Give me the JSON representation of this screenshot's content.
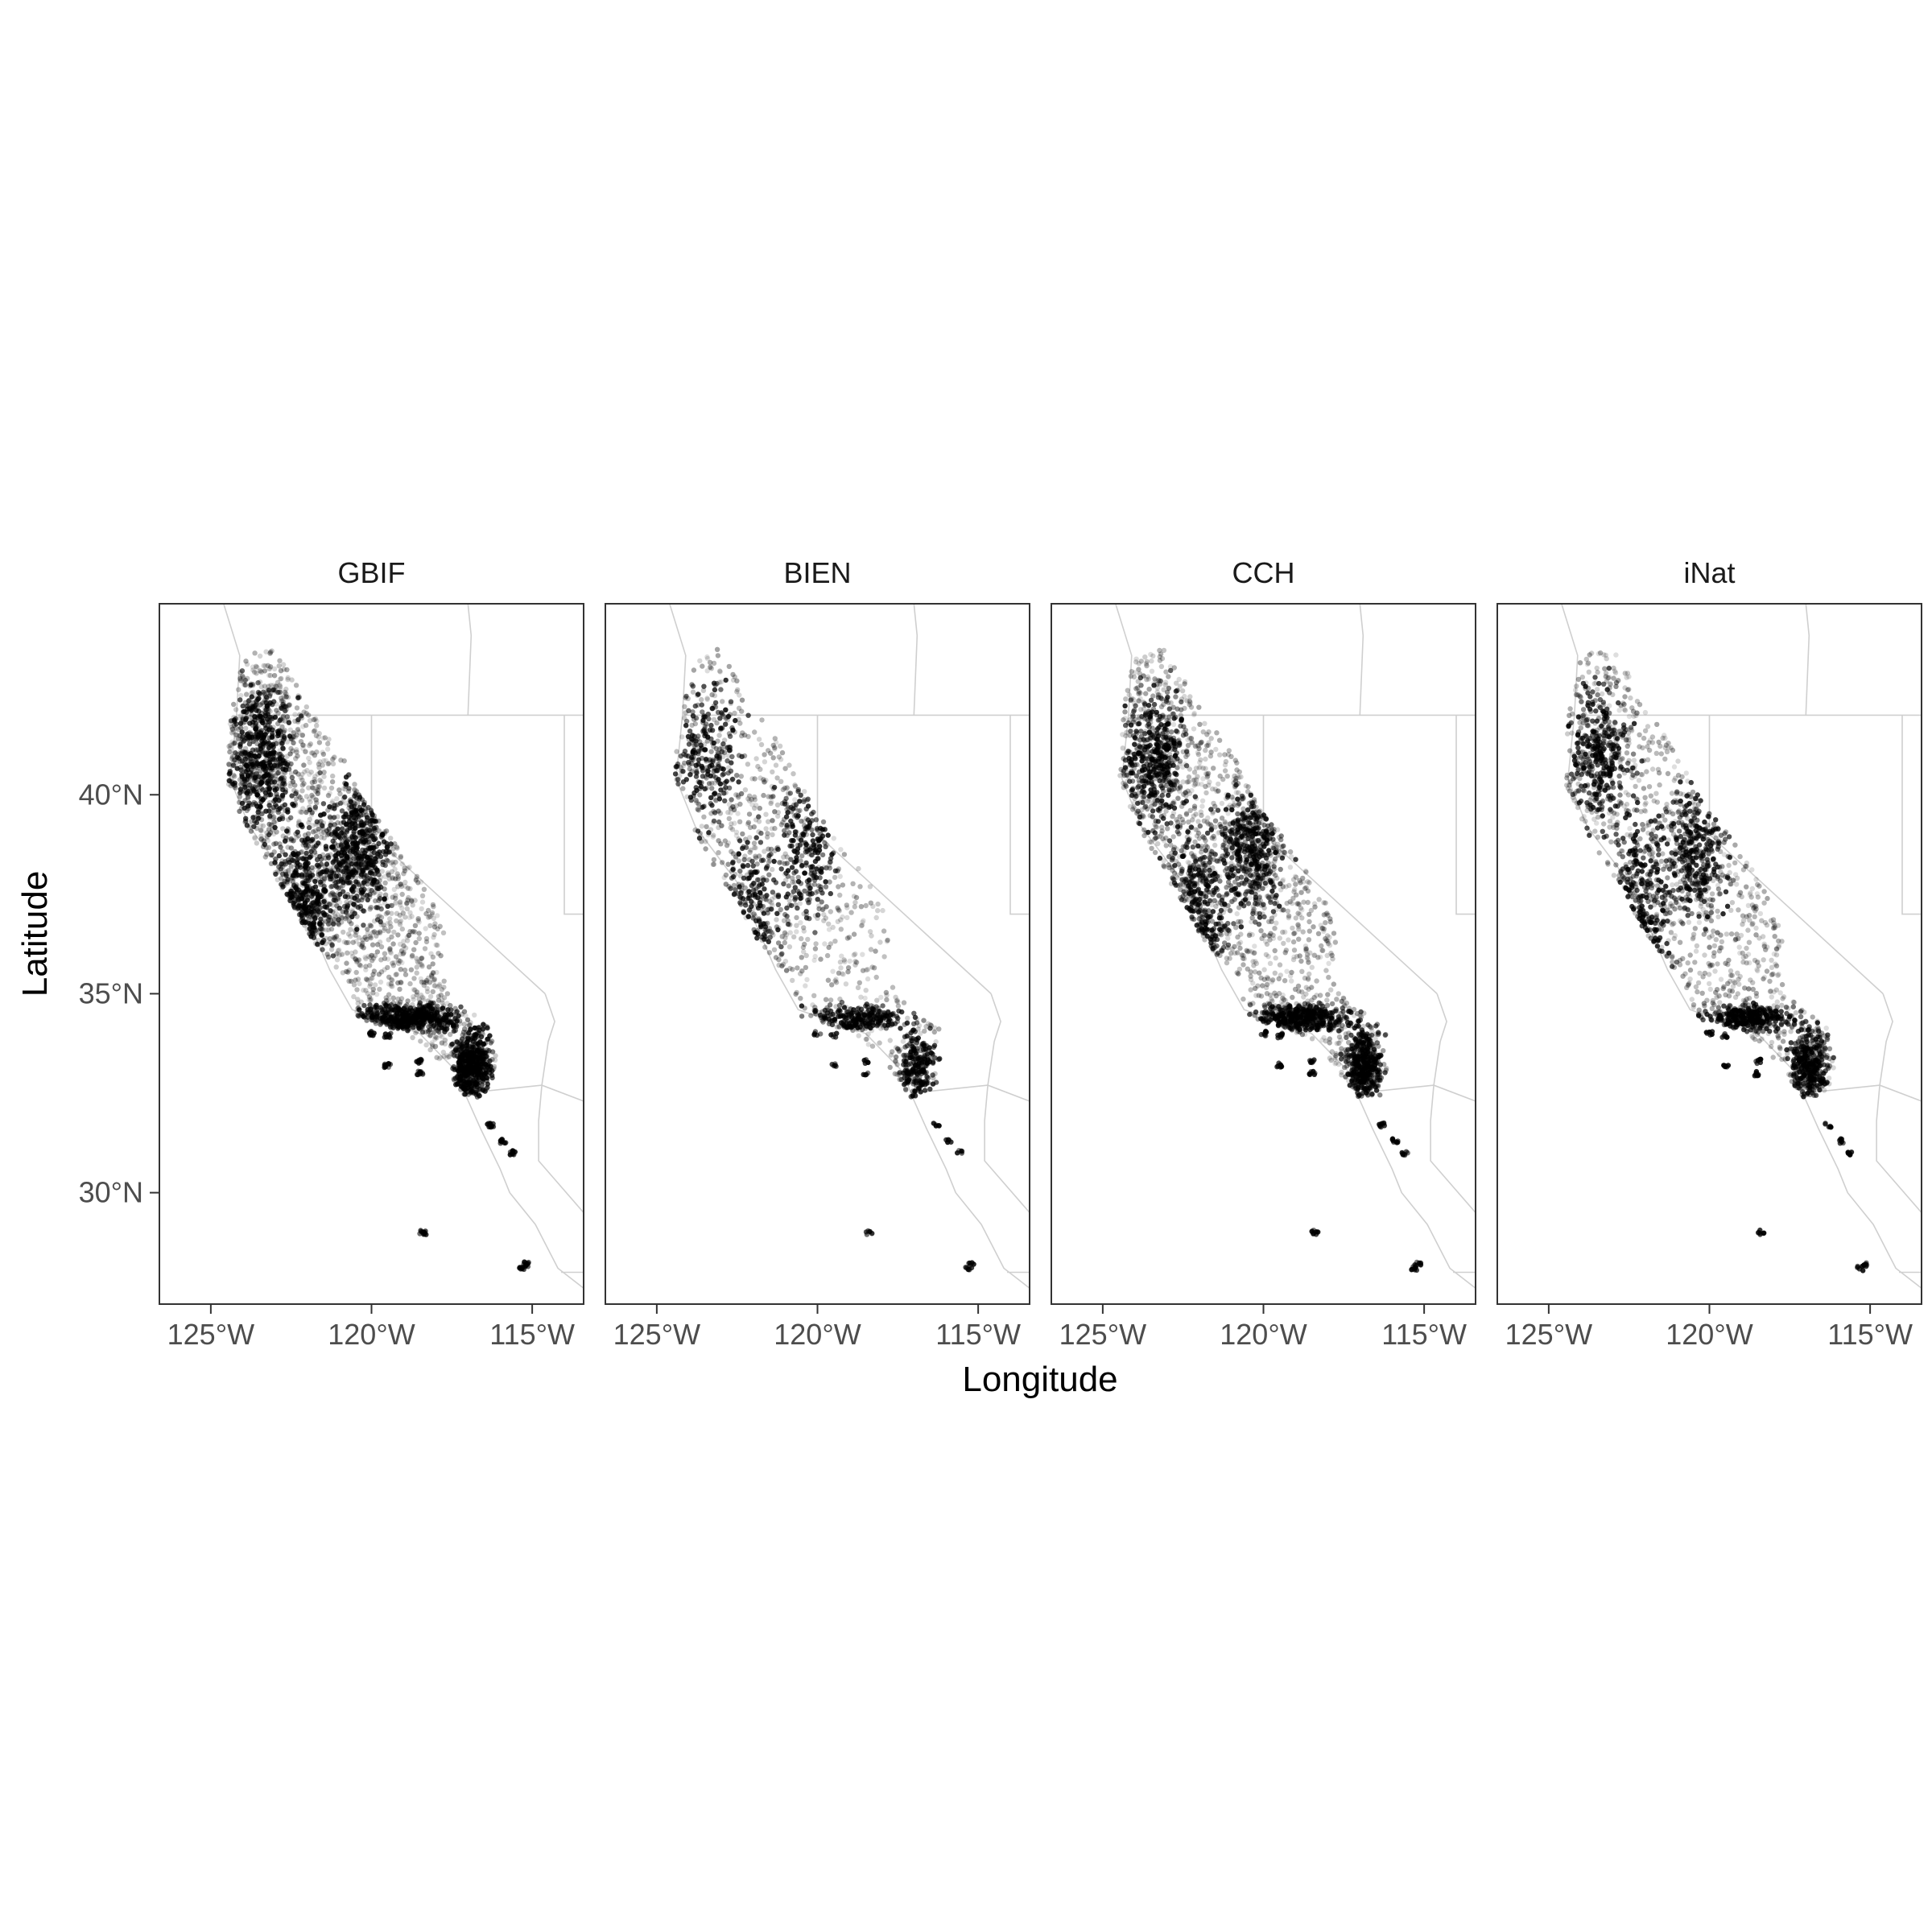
{
  "chart_data": {
    "type": "scatter",
    "facets": [
      "GBIF",
      "BIEN",
      "CCH",
      "iNat"
    ],
    "xlabel": "Longitude",
    "ylabel": "Latitude",
    "xlim": [
      -126.6,
      -113.4
    ],
    "ylim": [
      27.2,
      44.8
    ],
    "xticks": [
      -125,
      -120,
      -115
    ],
    "xtick_labels": [
      "125°W",
      "120°W",
      "115°W"
    ],
    "yticks": [
      30,
      35,
      40
    ],
    "ytick_labels": [
      "30°N",
      "35°N",
      "40°N"
    ],
    "grid": false,
    "point_color": "#000000",
    "background_map_color": "#cfcfcf",
    "panel_border_color": "#333333",
    "point_density": [
      1.0,
      0.45,
      0.8,
      0.65
    ],
    "occurrence_region": {
      "range_outline": [
        [
          -124.4,
          42.0
        ],
        [
          -124.0,
          43.5
        ],
        [
          -123.0,
          43.7
        ],
        [
          -121.8,
          42.0
        ],
        [
          -120.8,
          40.8
        ],
        [
          -120.3,
          39.9
        ],
        [
          -119.6,
          39.2
        ],
        [
          -118.9,
          38.4
        ],
        [
          -118.1,
          37.4
        ],
        [
          -117.7,
          36.5
        ],
        [
          -117.9,
          35.6
        ],
        [
          -117.5,
          34.9
        ],
        [
          -116.2,
          34.1
        ],
        [
          -116.1,
          33.1
        ],
        [
          -116.4,
          32.4
        ],
        [
          -117.1,
          32.4
        ],
        [
          -118.2,
          33.6
        ],
        [
          -119.2,
          34.1
        ],
        [
          -120.5,
          34.4
        ],
        [
          -120.8,
          35.3
        ],
        [
          -121.9,
          36.4
        ],
        [
          -122.5,
          37.3
        ],
        [
          -123.3,
          38.3
        ],
        [
          -123.9,
          39.2
        ],
        [
          -124.5,
          40.3
        ],
        [
          -124.4,
          42.0
        ]
      ],
      "dense_zones": [
        {
          "label": "north coast and klamath",
          "lon": -123.4,
          "lat": 41.0,
          "sx": 0.6,
          "sy": 1.1
        },
        {
          "label": "central coast",
          "lon": -122.1,
          "lat": 37.2,
          "sx": 0.6,
          "sy": 1.2
        },
        {
          "label": "sierra nevada",
          "lon": -120.4,
          "lat": 38.6,
          "sx": 0.6,
          "sy": 1.0
        },
        {
          "label": "transverse ranges",
          "lon": -118.8,
          "lat": 34.4,
          "sx": 0.9,
          "sy": 0.2
        },
        {
          "label": "peninsular ranges",
          "lon": -116.9,
          "lat": 33.2,
          "sx": 0.35,
          "sy": 0.55
        }
      ],
      "outliers": [
        {
          "label": "channel islands",
          "points": [
            [
              -120.0,
              34.0
            ],
            [
              -119.5,
              33.95
            ],
            [
              -118.5,
              33.3
            ],
            [
              -119.5,
              33.2
            ],
            [
              -118.5,
              33.0
            ]
          ]
        },
        {
          "label": "baja california",
          "points": [
            [
              -115.6,
              31.0
            ],
            [
              -115.9,
              31.3
            ],
            [
              -116.3,
              31.7
            ],
            [
              -118.4,
              29.0
            ],
            [
              -115.2,
              28.2
            ],
            [
              -115.3,
              28.1
            ]
          ]
        }
      ]
    },
    "basemap": {
      "coast": [
        [
          -124.6,
          44.8
        ],
        [
          -124.1,
          43.5
        ],
        [
          -124.2,
          42.0
        ],
        [
          -124.4,
          40.4
        ],
        [
          -123.8,
          39.2
        ],
        [
          -122.5,
          37.8
        ],
        [
          -122.0,
          36.9
        ],
        [
          -121.3,
          35.6
        ],
        [
          -120.6,
          34.6
        ],
        [
          -119.2,
          34.2
        ],
        [
          -118.5,
          34.0
        ],
        [
          -117.3,
          33.0
        ],
        [
          -117.1,
          32.5
        ],
        [
          -116.6,
          31.6
        ],
        [
          -116.0,
          30.6
        ],
        [
          -115.7,
          30.0
        ],
        [
          -114.9,
          29.2
        ],
        [
          -114.2,
          28.1
        ],
        [
          -113.4,
          27.6
        ]
      ],
      "borders": [
        [
          [
            -124.2,
            42.0
          ],
          [
            -113.4,
            42.0
          ]
        ],
        [
          [
            -120.0,
            42.0
          ],
          [
            -120.0,
            39.0
          ],
          [
            -114.6,
            35.0
          ]
        ],
        [
          [
            -114.6,
            35.0
          ],
          [
            -114.3,
            34.3
          ],
          [
            -114.5,
            33.8
          ],
          [
            -114.7,
            32.7
          ]
        ],
        [
          [
            -117.1,
            32.5
          ],
          [
            -114.7,
            32.7
          ],
          [
            -113.4,
            32.3
          ]
        ],
        [
          [
            -117.0,
            44.8
          ],
          [
            -116.9,
            44.0
          ],
          [
            -117.0,
            42.0
          ]
        ],
        [
          [
            -114.0,
            42.0
          ],
          [
            -114.0,
            37.0
          ],
          [
            -113.4,
            37.0
          ]
        ],
        [
          [
            -114.7,
            32.7
          ],
          [
            -114.8,
            31.8
          ],
          [
            -114.8,
            30.8
          ],
          [
            -113.4,
            29.5
          ]
        ],
        [
          [
            -114.1,
            28.0
          ],
          [
            -113.4,
            28.0
          ]
        ]
      ]
    }
  }
}
